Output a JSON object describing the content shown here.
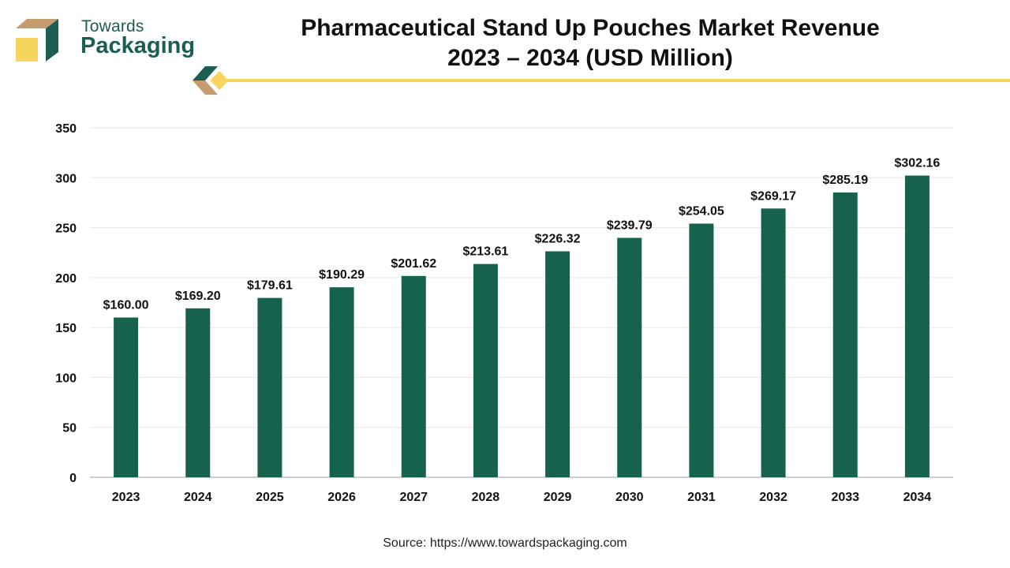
{
  "header": {
    "logo_line1": "Towards",
    "logo_line2": "Packaging",
    "title_line1": "Pharmaceutical Stand Up Pouches Market Revenue",
    "title_line2": "2023 – 2034 (USD Million)"
  },
  "footer": {
    "source": "Source: https://www.towardspackaging.com"
  },
  "colors": {
    "bar": "#17624f",
    "accent_line": "#f5d55a",
    "brand_green": "#1d5e52",
    "brand_tan": "#c69c6d",
    "brand_yellow": "#f7d45e"
  },
  "chart_data": {
    "type": "bar",
    "categories": [
      "2023",
      "2024",
      "2025",
      "2026",
      "2027",
      "2028",
      "2029",
      "2030",
      "2031",
      "2032",
      "2033",
      "2034"
    ],
    "values": [
      160.0,
      169.2,
      179.61,
      190.29,
      201.62,
      213.61,
      226.32,
      239.79,
      254.05,
      269.17,
      285.19,
      302.16
    ],
    "data_labels": [
      "$160.00",
      "$169.20",
      "$179.61",
      "$190.29",
      "$201.62",
      "$213.61",
      "$226.32",
      "$239.79",
      "$254.05",
      "$269.17",
      "$285.19",
      "$302.16"
    ],
    "yticks": [
      0,
      50,
      100,
      150,
      200,
      250,
      300,
      350
    ],
    "ylim": [
      0,
      350
    ],
    "title": "Pharmaceutical Stand Up Pouches Market Revenue 2023 – 2034 (USD Million)",
    "xlabel": "",
    "ylabel": "",
    "grid": true,
    "legend": "none"
  }
}
